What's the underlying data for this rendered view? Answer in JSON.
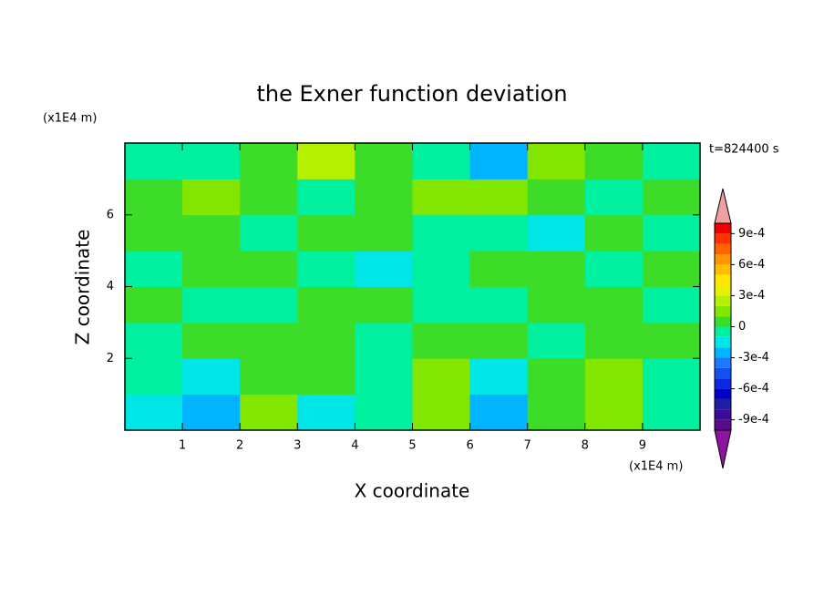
{
  "chart_data": {
    "type": "contour",
    "title": "the Exner function deviation",
    "xlabel": "X coordinate",
    "ylabel": "Z coordinate",
    "xunit": "(x1E4 m)",
    "yunit": "(x1E4 m)",
    "annotation": "t=824400 s",
    "xlim": [
      0,
      10
    ],
    "ylim": [
      0,
      8
    ],
    "xticks": [
      1,
      2,
      3,
      4,
      5,
      6,
      7,
      8,
      9
    ],
    "yticks": [
      2,
      4,
      6
    ],
    "x": [
      0.5,
      1.5,
      2.5,
      3.5,
      4.5,
      5.5,
      6.5,
      7.5,
      8.5,
      9.5
    ],
    "y": [
      0.5,
      1.5,
      2.5,
      3.5,
      4.5,
      5.5,
      6.5,
      7.5
    ],
    "z": [
      [
        -0.00015,
        -0.00025,
        0.00015,
        -0.00015,
        -5e-05,
        0.00015,
        -0.00025,
        5e-05,
        0.00015,
        -5e-05
      ],
      [
        -5e-05,
        -0.00015,
        5e-05,
        5e-05,
        -5e-05,
        0.00015,
        -0.00015,
        5e-05,
        0.00015,
        -5e-05
      ],
      [
        -5e-05,
        5e-05,
        5e-05,
        5e-05,
        -5e-05,
        5e-05,
        5e-05,
        -5e-05,
        5e-05,
        5e-05
      ],
      [
        5e-05,
        -5e-05,
        -5e-05,
        5e-05,
        5e-05,
        -5e-05,
        -5e-05,
        5e-05,
        5e-05,
        -5e-05
      ],
      [
        -5e-05,
        5e-05,
        5e-05,
        -5e-05,
        -0.00015,
        -5e-05,
        5e-05,
        5e-05,
        -5e-05,
        5e-05
      ],
      [
        5e-05,
        5e-05,
        -5e-05,
        5e-05,
        5e-05,
        -5e-05,
        -5e-05,
        -0.00015,
        5e-05,
        -5e-05
      ],
      [
        5e-05,
        0.00015,
        5e-05,
        -5e-05,
        5e-05,
        0.00015,
        0.00015,
        5e-05,
        -5e-05,
        5e-05
      ],
      [
        -5e-05,
        -5e-05,
        5e-05,
        0.00025,
        5e-05,
        -5e-05,
        -0.00025,
        0.00015,
        5e-05,
        -5e-05
      ]
    ],
    "levels": [
      -0.001,
      -0.0009,
      -0.0008,
      -0.0007,
      -0.0006,
      -0.0005,
      -0.0004,
      -0.0003,
      -0.0002,
      -0.0001,
      0,
      0.0001,
      0.0002,
      0.0003,
      0.0004,
      0.0005,
      0.0006,
      0.0007,
      0.0008,
      0.0009,
      0.001
    ],
    "colors": [
      "#5a0a8c",
      "#3c0a96",
      "#1e1ea0",
      "#0000c8",
      "#0a28e6",
      "#1450f0",
      "#1e78ff",
      "#00b4ff",
      "#00e6e6",
      "#00f0a0",
      "#3cdc28",
      "#82e600",
      "#b4f000",
      "#e6f000",
      "#ffe600",
      "#ffbe00",
      "#ff9600",
      "#ff6400",
      "#ff3200",
      "#f00000"
    ],
    "extend_colors": [
      "#8c14a0",
      "#f0a0a0"
    ],
    "colorbar_ticks": [
      {
        "value": 0.0009,
        "label": "9e-4"
      },
      {
        "value": 0.0006,
        "label": "6e-4"
      },
      {
        "value": 0.0003,
        "label": "3e-4"
      },
      0,
      {
        "value": -0.0003,
        "label": "-3e-4"
      },
      {
        "value": -0.0006,
        "label": "-6e-4"
      },
      {
        "value": -0.0009,
        "label": "-9e-4"
      }
    ]
  }
}
